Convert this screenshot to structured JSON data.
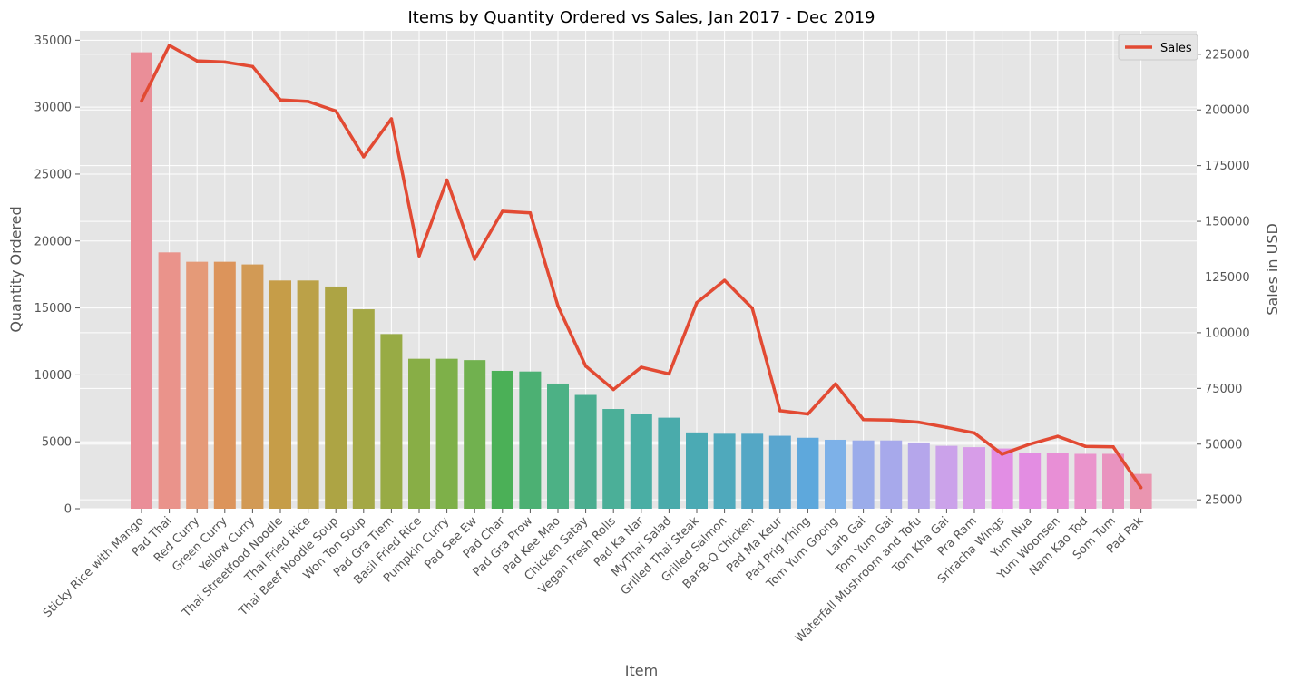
{
  "chart_data": {
    "type": "bar",
    "title": "Items by Quantity Ordered vs Sales, Jan 2017 - Dec 2019",
    "xlabel": "Item",
    "ylabel": "Quantity Ordered",
    "y2label": "Sales in USD",
    "ylim": [
      0,
      35700
    ],
    "y2lim": [
      21000,
      235500
    ],
    "yticks": [
      0,
      5000,
      10000,
      15000,
      20000,
      25000,
      30000,
      35000
    ],
    "y2ticks": [
      25000,
      50000,
      75000,
      100000,
      125000,
      150000,
      175000,
      200000,
      225000
    ],
    "grid": true,
    "legend": {
      "position": "top-right",
      "entries": [
        "Sales"
      ]
    },
    "categories": [
      "Sticky Rice with Mango",
      "Pad Thai",
      "Red Curry",
      "Green Curry",
      "Yellow Curry",
      "Thai Streetfood Noodle",
      "Thai Fried Rice",
      "Thai Beef Noodle Soup",
      "Won Ton Soup",
      "Pad Gra Tiem",
      "Basil Fried Rice",
      "Pumpkin Curry",
      "Pad See Ew",
      "Pad Char",
      "Pad Gra Prow",
      "Pad Kee Mao",
      "Chicken Satay",
      "Vegan Fresh Rolls",
      "Pad Ka Nar",
      "MyThai Salad",
      "Grilled Thai Steak",
      "Grilled Salmon",
      "Bar-B-Q Chicken",
      "Pad Ma Keur",
      "Pad Prig Khing",
      "Tom Yum Goong",
      "Larb Gai",
      "Tom Yum Gai",
      "Waterfall Mushroom and Tofu",
      "Tom Kha Gai",
      "Pra Ram",
      "Sriracha Wings",
      "Yum Nua",
      "Yum Woonsen",
      "Nam Kao Tod",
      "Som Tum",
      "Pad Pak"
    ],
    "series": [
      {
        "name": "Quantity Ordered",
        "type": "bar",
        "axis": "left",
        "values": [
          34100,
          19150,
          18450,
          18450,
          18250,
          17050,
          17050,
          16600,
          14900,
          13050,
          11200,
          11200,
          11100,
          10300,
          10250,
          9350,
          8500,
          7450,
          7050,
          6800,
          5700,
          5600,
          5600,
          5450,
          5300,
          5150,
          5100,
          5100,
          4950,
          4700,
          4600,
          4500,
          4200,
          4200,
          4100,
          4100,
          2600
        ]
      },
      {
        "name": "Sales",
        "type": "line",
        "axis": "right",
        "values": [
          204000,
          229000,
          222000,
          221500,
          219500,
          204500,
          203800,
          199500,
          179000,
          196000,
          134500,
          168500,
          133000,
          154500,
          153800,
          112000,
          85000,
          74500,
          84500,
          81500,
          113500,
          123500,
          111000,
          65000,
          63500,
          77000,
          61000,
          60800,
          59800,
          57500,
          55000,
          45500,
          50000,
          53500,
          49000,
          48800,
          30500
        ]
      }
    ],
    "colors": {
      "background": "#e5e5e5",
      "grid": "#ffffff",
      "line": "#e24a33",
      "text": "#555555",
      "title": "#000000",
      "bars": [
        "#ea8e98",
        "#ea938b",
        "#e59a78",
        "#dc945b",
        "#d29a55",
        "#c69d48",
        "#bba148",
        "#ada444",
        "#a4a845",
        "#98ab45",
        "#88ae46",
        "#7eb049",
        "#71b14f",
        "#4bb057",
        "#4cb073",
        "#4cb185",
        "#4aad8f",
        "#4baf98",
        "#4aaea4",
        "#4aabab",
        "#4baab4",
        "#4fa9bc",
        "#54a7c5",
        "#5aa6cf",
        "#5ea8dc",
        "#7db1e8",
        "#9bacea",
        "#a7a9eb",
        "#b5a6eb",
        "#cba2ea",
        "#d79de8",
        "#e28ee4",
        "#e38de2",
        "#e88fd6",
        "#ea94cc",
        "#e993bf",
        "#ea95b0"
      ]
    }
  }
}
